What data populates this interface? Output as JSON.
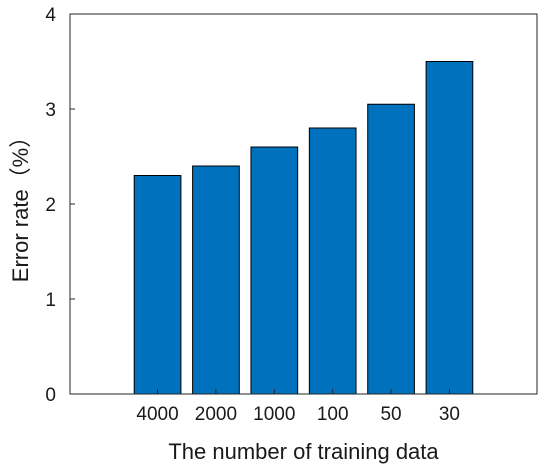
{
  "chart_data": {
    "type": "bar",
    "categories": [
      "4000",
      "2000",
      "1000",
      "100",
      "50",
      "30"
    ],
    "values": [
      2.3,
      2.4,
      2.6,
      2.8,
      3.05,
      3.5
    ],
    "title": "",
    "xlabel": "The number of training data",
    "ylabel": "Error rate（%）",
    "ylim": [
      0,
      4
    ],
    "yticks": [
      "0",
      "1",
      "2",
      "3",
      "4"
    ],
    "grid": false,
    "bar_color": "#0072bd",
    "edge_color": "#000000"
  }
}
